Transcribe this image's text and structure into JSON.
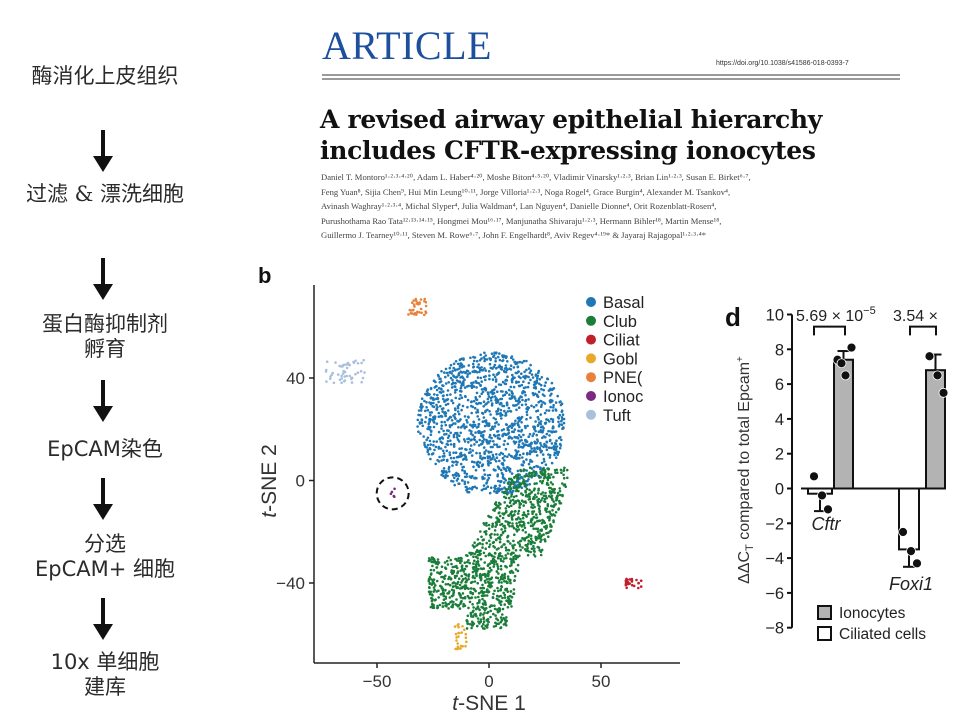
{
  "workflow": {
    "steps": [
      {
        "lines": [
          "酶消化上皮组织"
        ]
      },
      {
        "lines": [
          "过滤 & 漂洗细胞"
        ]
      },
      {
        "lines": [
          "蛋白酶抑制剂",
          "孵育"
        ]
      },
      {
        "lines": [
          "EpCAM染色"
        ]
      },
      {
        "lines": [
          "分选",
          "EpCAM+ 细胞"
        ]
      },
      {
        "lines": [
          "10x 单细胞",
          "建库"
        ]
      }
    ],
    "arrow_icon": "down-arrow"
  },
  "article": {
    "label": "ARTICLE",
    "doi": "https://doi.org/10.1038/s41586-018-0393-7",
    "title_line1": "A revised airway epithelial hierarchy",
    "title_line2": "includes CFTR-expressing ionocytes",
    "author_lines": [
      "Daniel T. Montoro¹·²·³·⁴·²⁰, Adam L. Haber⁴·²⁰, Moshe Biton⁴·⁵·²⁰, Vladimir Vinarsky¹·²·³, Brian Lin¹·²·³, Susan E. Birket⁶·⁷,",
      "Feng Yuan⁸, Sijia Chen⁹, Hui Min Leung¹⁰·¹¹, Jorge Villoria¹·²·³, Noga Rogel⁴, Grace Burgin⁴, Alexander M. Tsankov⁴,",
      "Avinash Waghray¹·²·³·⁴, Michal Slyper⁴, Julia Waldman⁴, Lan Nguyen⁴, Danielle Dionne⁴, Orit Rozenblatt-Rosen⁴,",
      "Purushothama Rao Tata¹²·¹³·¹⁴·¹⁵, Hongmei Mou¹⁶·¹⁷, Manjunatha Shivaraju¹·²·³, Hermann Bihler¹⁸, Martin Mense¹⁸,",
      "Guillermo J. Tearney¹⁰·¹¹, Steven M. Rowe⁶·⁷, John F. Engelhardt⁸, Aviv Regev⁴·¹⁹* & Jayaraj Rajagopal¹·²·³·⁴*"
    ]
  },
  "chart_data": [
    {
      "type": "scatter",
      "panel_label": "b",
      "title": "",
      "xlabel_prefix": "t",
      "xlabel": "-SNE 1",
      "ylabel_prefix": "t",
      "ylabel": "-SNE 2",
      "xlim": [
        -70,
        85
      ],
      "ylim": [
        -70,
        73
      ],
      "xticks": [
        -50,
        0,
        50
      ],
      "xtick_labels": [
        "−50",
        "0",
        "50"
      ],
      "yticks": [
        -40,
        0,
        40
      ],
      "ytick_labels": [
        "−40",
        "0",
        "40"
      ],
      "grid": false,
      "legend_position": "top-right",
      "annotation": "dashed circle around ionocyte cluster near (-43, -5)",
      "clusters": [
        {
          "name": "Basal",
          "legend_label": "Basal",
          "color": "#1f77b4",
          "approx_center": [
            -2,
            22
          ],
          "approx_extent": [
            [
              -32,
              35
            ],
            [
              -5,
              50
            ]
          ],
          "n_points": 1400
        },
        {
          "name": "Club",
          "legend_label": "Club",
          "color": "#1b7d3a",
          "approx_center": [
            5,
            -30
          ],
          "approx_extent": [
            [
              -27,
              35
            ],
            [
              -58,
              5
            ]
          ],
          "n_points": 1200
        },
        {
          "name": "Ciliated",
          "legend_label": "Ciliat",
          "color": "#c0202c",
          "approx_center": [
            64,
            -40
          ],
          "approx_extent": [
            [
              61,
              68
            ],
            [
              -42,
              -38
            ]
          ],
          "n_points": 25
        },
        {
          "name": "Goblet",
          "legend_label": "Gobl",
          "color": "#e8a82a",
          "approx_center": [
            -13,
            -60
          ],
          "approx_extent": [
            [
              -16,
              -10
            ],
            [
              -66,
              -56
            ]
          ],
          "n_points": 25
        },
        {
          "name": "PNEC",
          "legend_label": "PNE(",
          "color": "#e8823a",
          "approx_center": [
            -33,
            68
          ],
          "approx_extent": [
            [
              -36,
              -28
            ],
            [
              64,
              71
            ]
          ],
          "n_points": 35
        },
        {
          "name": "Ionocytes",
          "legend_label": "Ionoc",
          "color": "#7b2a7e",
          "approx_center": [
            -43,
            -5
          ],
          "approx_extent": [
            [
              -44,
              -42
            ],
            [
              -7,
              -3
            ]
          ],
          "n_points": 5
        },
        {
          "name": "Tuft",
          "legend_label": "Tuft",
          "color": "#a9c0dc",
          "approx_center": [
            -66,
            44
          ],
          "approx_extent": [
            [
              -73,
              -55
            ],
            [
              38,
              47
            ]
          ],
          "n_points": 50
        }
      ]
    },
    {
      "type": "bar",
      "panel_label": "d",
      "title": "",
      "ylabel": "ΔΔC_T compared to total Epcam⁺",
      "ylabel_parts": {
        "delta": "ΔΔC",
        "sub": "T",
        "rest": " compared to total Epcam",
        "sup": "+"
      },
      "ylim": [
        -8,
        10
      ],
      "yticks": [
        -8,
        -6,
        -4,
        -2,
        0,
        2,
        4,
        6,
        8,
        10
      ],
      "ytick_labels": [
        "−8",
        "−6",
        "−4",
        "−2",
        "0",
        "2",
        "4",
        "6",
        "8",
        "10"
      ],
      "categories": [
        "Cftr",
        "Foxi1"
      ],
      "series": [
        {
          "name": "Ciliated cells",
          "fill": "#ffffff",
          "values": [
            -0.3,
            -3.5
          ],
          "error_high": [
            null,
            null
          ],
          "error_low": [
            -1.3,
            -4.5
          ],
          "points": [
            [
              0.7,
              -0.4,
              -1.2
            ],
            [
              -2.5,
              -3.6,
              -4.3
            ]
          ]
        },
        {
          "name": "Ionocytes",
          "fill": "#b3b3b3",
          "values": [
            7.4,
            6.8
          ],
          "error_high": [
            7.9,
            7.7
          ],
          "error_low": [
            null,
            null
          ],
          "points": [
            [
              7.4,
              6.5,
              8.1,
              7.2
            ],
            [
              7.6,
              6.5,
              5.5
            ]
          ]
        }
      ],
      "significance": [
        {
          "category": "Cftr",
          "label_main": "5.69 × 10",
          "label_exp": "−5"
        },
        {
          "category": "Foxi1",
          "label_main": "3.54 ×",
          "label_exp": ""
        }
      ],
      "legend": [
        {
          "label": "Ionocytes",
          "fill": "#b3b3b3"
        },
        {
          "label": "Ciliated cells",
          "fill": "#ffffff"
        }
      ],
      "legend_position": "bottom-right"
    }
  ]
}
